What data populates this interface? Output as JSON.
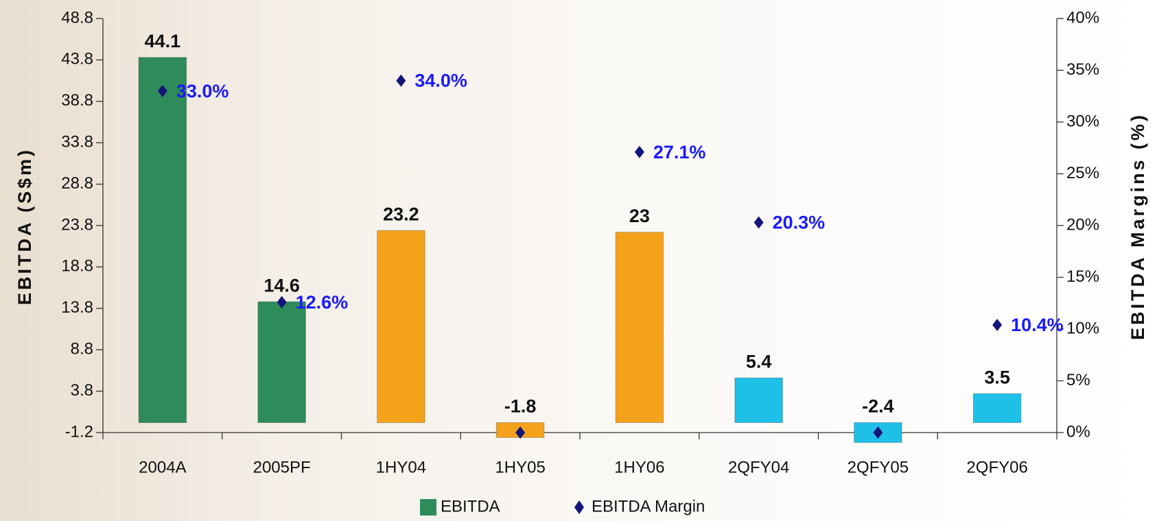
{
  "chart_data": {
    "type": "bar",
    "categories": [
      "2004A",
      "2005PF",
      "1HY04",
      "1HY05",
      "1HY06",
      "2QFY04",
      "2QFY05",
      "2QFY06"
    ],
    "series": [
      {
        "name": "EBITDA",
        "type": "bar",
        "color": "#2e8b5a",
        "colors": [
          "#2e8b5a",
          "#2e8b5a",
          "#f5a21b",
          "#f5a21b",
          "#f5a21b",
          "#1ec0e8",
          "#1ec0e8",
          "#1ec0e8"
        ],
        "values": [
          44.1,
          14.6,
          23.2,
          -1.8,
          23.0,
          5.4,
          -2.4,
          3.5
        ]
      },
      {
        "name": "EBITDA Margin",
        "type": "scatter",
        "axis": "y2",
        "color": "#14147a",
        "label_color": "#1a1aff",
        "values": [
          33.0,
          12.6,
          34.0,
          0,
          27.1,
          20.3,
          0,
          10.4
        ],
        "value_labels": [
          "33.0%",
          "12.6%",
          "34.0%",
          null,
          "27.1%",
          "20.3%",
          null,
          "10.4%"
        ]
      }
    ],
    "ylabel": "EBITDA (S$m)",
    "y2label": "EBITDA Margins (%)",
    "ylim": [
      -1.2,
      48.8
    ],
    "yticks": [
      -1.2,
      3.8,
      8.8,
      13.8,
      18.8,
      23.8,
      28.8,
      33.8,
      38.8,
      43.8,
      48.8
    ],
    "y2lim": [
      0,
      40
    ],
    "y2ticks": [
      {
        "value": 0,
        "label": "0%"
      },
      {
        "value": 5,
        "label": "5%"
      },
      {
        "value": 10,
        "label": "10%"
      },
      {
        "value": 15,
        "label": "15%"
      },
      {
        "value": 20,
        "label": "20%"
      },
      {
        "value": 25,
        "label": "25%"
      },
      {
        "value": 30,
        "label": "30%"
      },
      {
        "value": 35,
        "label": "35%"
      },
      {
        "value": 40,
        "label": "40%"
      }
    ],
    "legend": "bottom"
  }
}
